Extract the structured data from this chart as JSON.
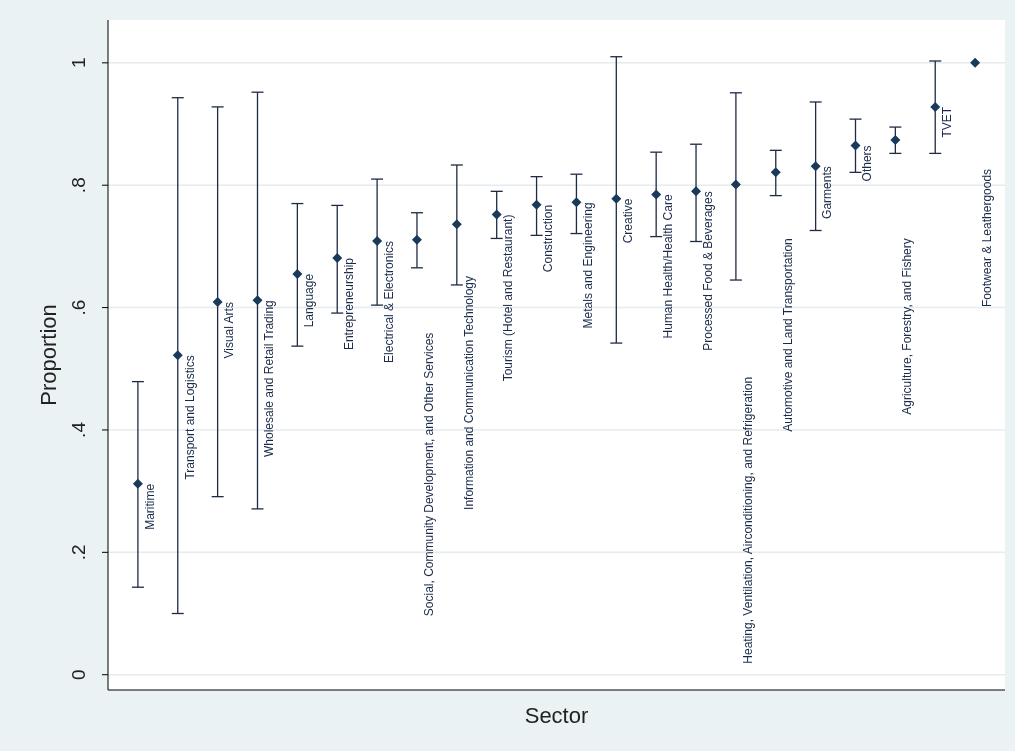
{
  "chart_data": {
    "type": "scatter",
    "xlabel": "Sector",
    "ylabel": "Proportion",
    "ylim": [
      -0.025,
      1.07
    ],
    "categories": [
      null,
      null,
      null,
      null,
      null,
      null,
      null,
      null,
      null,
      null,
      null,
      null,
      null,
      null,
      null,
      null,
      null,
      null,
      null,
      null,
      null,
      null
    ],
    "yticks": [
      {
        "value": 0,
        "label": "0"
      },
      {
        "value": 0.2,
        "label": ".2"
      },
      {
        "value": 0.4,
        "label": ".4"
      },
      {
        "value": 0.6,
        "label": ".6"
      },
      {
        "value": 0.8,
        "label": ".8"
      },
      {
        "value": 1,
        "label": "1"
      }
    ],
    "grid": "y",
    "marker": "diamond",
    "series": [
      {
        "color": "#1a3a5c",
        "values": [
          0.312,
          0.522,
          0.609,
          0.612,
          0.655,
          0.681,
          0.709,
          0.711,
          0.736,
          0.752,
          0.768,
          0.772,
          0.778,
          0.785,
          0.79,
          0.801,
          0.821,
          0.831,
          0.865,
          0.874,
          0.928,
          1.0
        ],
        "errors": [
          [
            0.143,
            0.479
          ],
          [
            0.1,
            0.943
          ],
          [
            0.291,
            0.928
          ],
          [
            0.271,
            0.952
          ],
          [
            0.537,
            0.77
          ],
          [
            0.591,
            0.767
          ],
          [
            0.604,
            0.81
          ],
          [
            0.665,
            0.755
          ],
          [
            0.637,
            0.833
          ],
          [
            0.713,
            0.79
          ],
          [
            0.718,
            0.814
          ],
          [
            0.721,
            0.818
          ],
          [
            0.542,
            1.01
          ],
          [
            0.716,
            0.854
          ],
          [
            0.708,
            0.867
          ],
          [
            0.645,
            0.951
          ],
          [
            0.783,
            0.857
          ],
          [
            0.726,
            0.936
          ],
          [
            0.821,
            0.908
          ],
          [
            0.852,
            0.895
          ],
          [
            0.852,
            1.003
          ],
          null
        ]
      }
    ],
    "annotations": [
      "Maritime",
      "Transport and Logistics",
      "Visual Arts",
      "Wholesale and Retail Trading",
      "Language",
      "Entrepreneurship",
      "Electrical & Electronics",
      "Social, Community Development, and Other Services",
      "Information and Communication Technology",
      "Tourism (Hotel and Restaurant)",
      "Construction",
      "Metals and Engineering",
      "Creative",
      "Human Health/Health Care",
      "Processed Food & Beverages",
      "Heating, Ventilation, Airconditioning, and Refrigeration",
      "Automotive and Land Transportation",
      "Garments",
      "Others",
      "Agriculture, Forestry, and Fishery",
      "TVET",
      "Footwear & Leathergoods"
    ]
  }
}
